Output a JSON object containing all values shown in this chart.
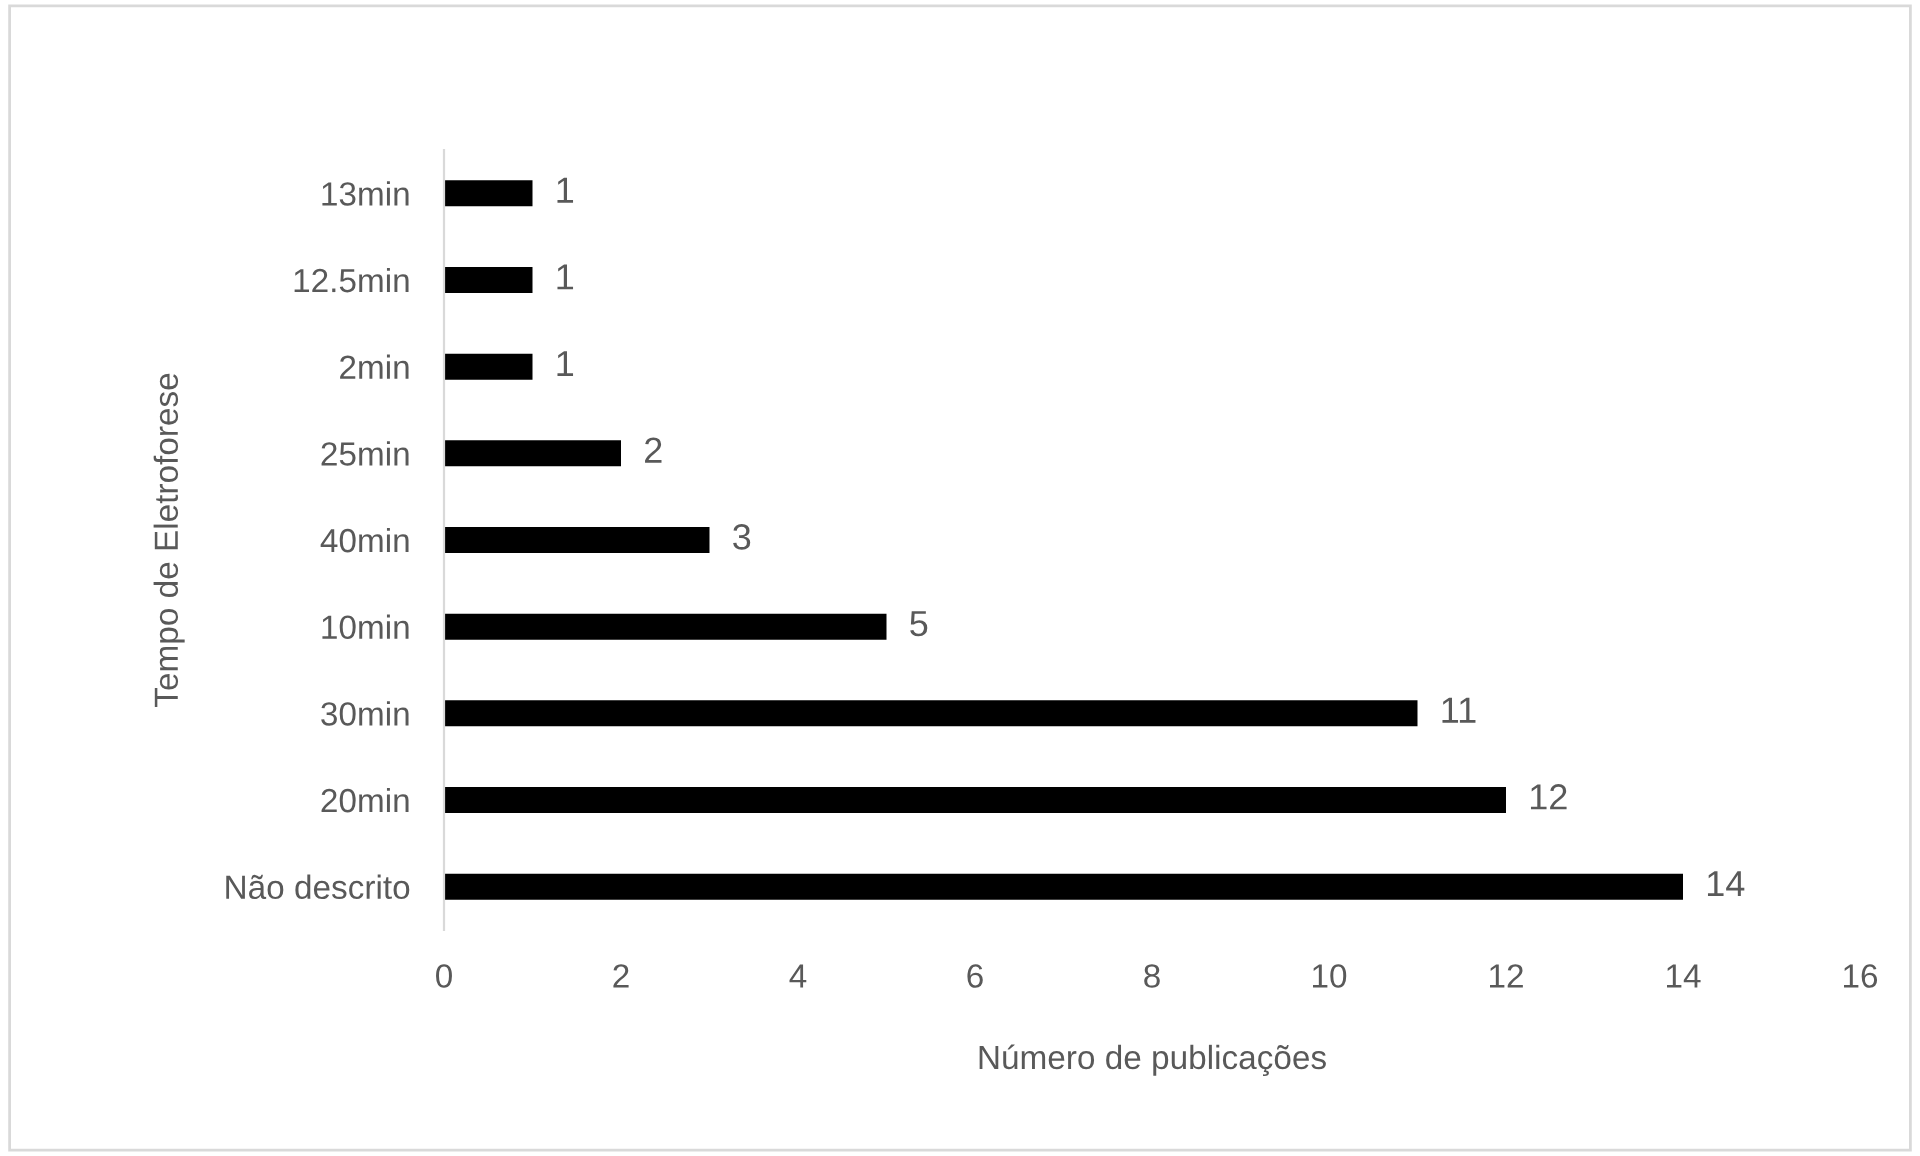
{
  "chart_data": {
    "type": "bar",
    "orientation": "horizontal",
    "categories": [
      "13min",
      "12.5min",
      "2min",
      "25min",
      "40min",
      "10min",
      "30min",
      "20min",
      "Não descrito"
    ],
    "values": [
      1,
      1,
      1,
      2,
      3,
      5,
      11,
      12,
      14
    ],
    "color": "#000000",
    "xlim": [
      0,
      16
    ],
    "xticks": [
      0,
      2,
      4,
      6,
      8,
      10,
      12,
      14,
      16
    ],
    "xlabel": "Número de publicações",
    "ylabel": "Tempo de Eletroforese",
    "data_labels": true,
    "grid": false,
    "legend": false
  }
}
